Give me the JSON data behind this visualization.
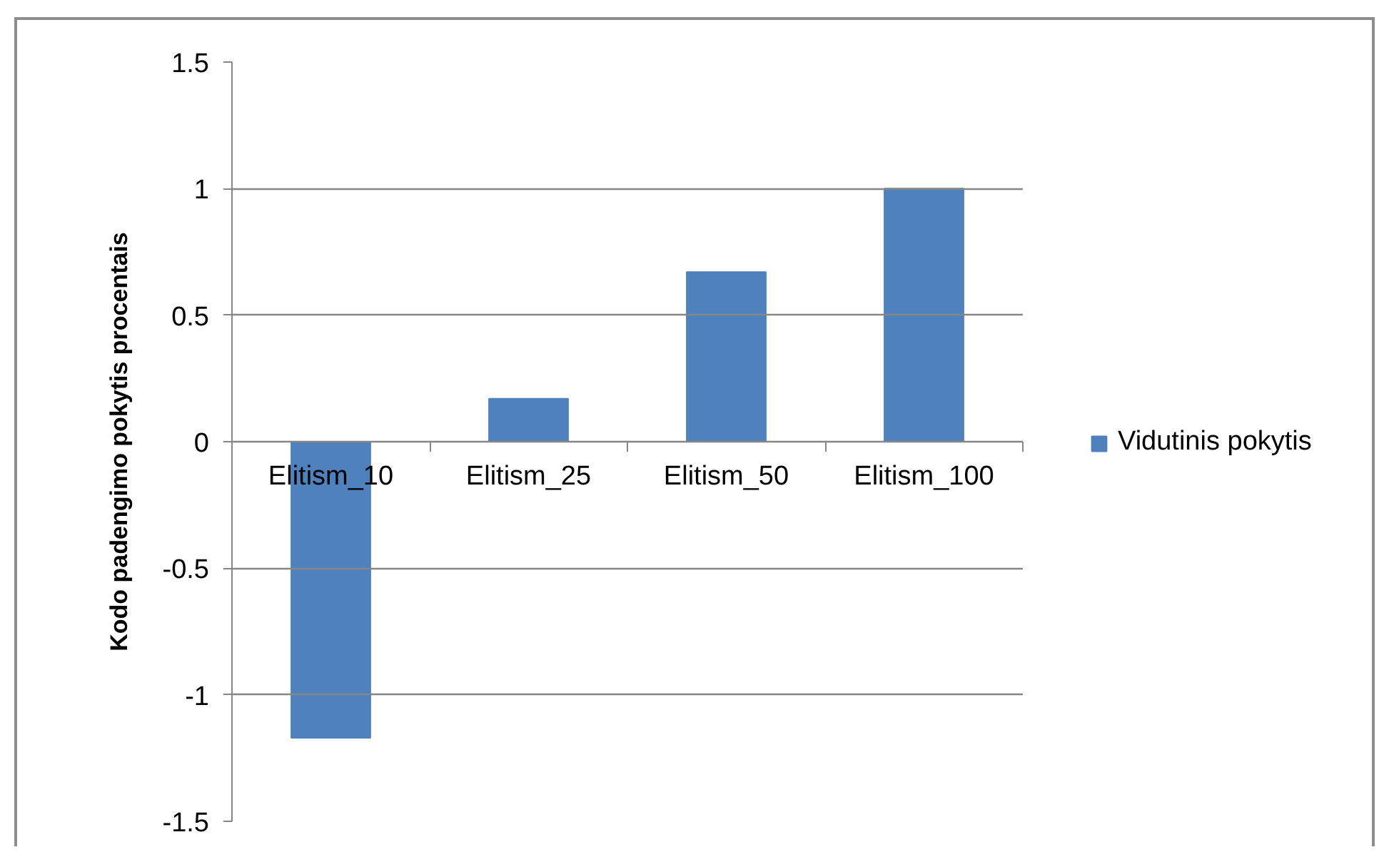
{
  "chart_data": {
    "type": "bar",
    "ylabel": "Kodo padengimo pokytis procentais",
    "categories": [
      "Elitism_10",
      "Elitism_25",
      "Elitism_50",
      "Elitism_100"
    ],
    "series": [
      {
        "name": "Vidutinis pokytis",
        "color": "#4f81bd",
        "values": [
          -1.17,
          0.17,
          0.67,
          1
        ]
      }
    ],
    "ylim": [
      -1.5,
      1.5
    ],
    "yticks": [
      -1.5,
      -1,
      -0.5,
      0,
      0.5,
      1,
      1.5
    ],
    "grid": "y",
    "legend": "right"
  }
}
